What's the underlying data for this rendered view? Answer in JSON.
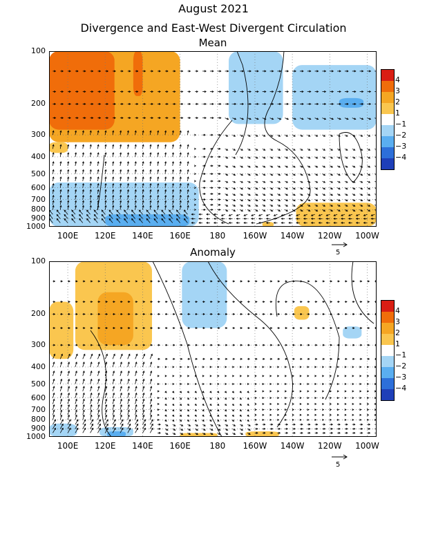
{
  "header": {
    "title": "August 2021",
    "subtitle": "Divergence and East-West Divergent Circulation"
  },
  "panels": [
    {
      "id": "mean",
      "title": "Mean"
    },
    {
      "id": "anomaly",
      "title": "Anomaly"
    }
  ],
  "y_ticks": [
    "100",
    "200",
    "300",
    "400",
    "500",
    "600",
    "700",
    "800",
    "900",
    "1000"
  ],
  "x_ticks": [
    "100E",
    "120E",
    "140E",
    "160E",
    "180",
    "160W",
    "140W",
    "120W",
    "100W"
  ],
  "reference_vector_label": "5",
  "colorbar": {
    "labels": [
      "4",
      "3",
      "2",
      "1",
      "−1",
      "−2",
      "−3",
      "−4"
    ],
    "colors": [
      "#d91e13",
      "#f06d0a",
      "#f5a623",
      "#fac64f",
      "#ffffff",
      "#a4d5f5",
      "#5aaef0",
      "#2d6fd9",
      "#1e3fb8",
      "#8a6fd6"
    ]
  },
  "chart_data": [
    {
      "type": "heatmap",
      "title": "Mean",
      "x_axis": "longitude",
      "y_axis": "pressure (hPa)",
      "xlim": [
        90,
        265
      ],
      "ylim": [
        1000,
        100
      ],
      "y_ticks": [
        100,
        200,
        300,
        400,
        500,
        600,
        700,
        800,
        900,
        1000
      ],
      "x_ticks": [
        100,
        120,
        140,
        160,
        180,
        200,
        220,
        240,
        260
      ],
      "levels": [
        -4,
        -3,
        -2,
        -1,
        1,
        2,
        3,
        4
      ],
      "regions": [
        {
          "lon": [
            90,
            160
          ],
          "p": [
            100,
            330
          ],
          "value": 2
        },
        {
          "lon": [
            90,
            125
          ],
          "p": [
            100,
            280
          ],
          "value": 3
        },
        {
          "lon": [
            125,
            145
          ],
          "p": [
            100,
            230
          ],
          "value": 2.5
        },
        {
          "lon": [
            135,
            140
          ],
          "p": [
            100,
            180
          ],
          "value": 3.5
        },
        {
          "lon": [
            90,
            100
          ],
          "p": [
            330,
            380
          ],
          "value": 1.5
        },
        {
          "lon": [
            186,
            215
          ],
          "p": [
            100,
            260
          ],
          "value": -1.5
        },
        {
          "lon": [
            220,
            265
          ],
          "p": [
            120,
            280
          ],
          "value": -1.5
        },
        {
          "lon": [
            245,
            258
          ],
          "p": [
            185,
            210
          ],
          "value": -2.5
        },
        {
          "lon": [
            90,
            170
          ],
          "p": [
            560,
            1000
          ],
          "value": -1.5
        },
        {
          "lon": [
            120,
            165
          ],
          "p": [
            850,
            1000
          ],
          "value": -2.5
        },
        {
          "lon": [
            222,
            265
          ],
          "p": [
            730,
            1000
          ],
          "value": 1.5
        },
        {
          "lon": [
            204,
            210
          ],
          "p": [
            940,
            1000
          ],
          "value": 1.5
        }
      ],
      "wind_note": "upward arrows 100E-160E at 300-1000 hPa, descending 160W-100W"
    },
    {
      "type": "heatmap",
      "title": "Anomaly",
      "x_axis": "longitude",
      "y_axis": "pressure (hPa)",
      "xlim": [
        90,
        265
      ],
      "ylim": [
        1000,
        100
      ],
      "y_ticks": [
        100,
        200,
        300,
        400,
        500,
        600,
        700,
        800,
        900,
        1000
      ],
      "x_ticks": [
        100,
        120,
        140,
        160,
        180,
        200,
        220,
        240,
        260
      ],
      "levels": [
        -4,
        -3,
        -2,
        -1,
        1,
        2,
        3,
        4
      ],
      "regions": [
        {
          "lon": [
            90,
            103
          ],
          "p": [
            170,
            360
          ],
          "value": 1.5
        },
        {
          "lon": [
            104,
            145
          ],
          "p": [
            100,
            320
          ],
          "value": 1.5
        },
        {
          "lon": [
            116,
            135
          ],
          "p": [
            150,
            300
          ],
          "value": 2.2
        },
        {
          "lon": [
            161,
            185
          ],
          "p": [
            100,
            240
          ],
          "value": -1.5
        },
        {
          "lon": [
            221,
            229
          ],
          "p": [
            180,
            215
          ],
          "value": 1.5
        },
        {
          "lon": [
            247,
            257
          ],
          "p": [
            235,
            275
          ],
          "value": -1.5
        },
        {
          "lon": [
            90,
            105
          ],
          "p": [
            840,
            1000
          ],
          "value": -1.5
        },
        {
          "lon": [
            117,
            135
          ],
          "p": [
            880,
            1000
          ],
          "value": -1.5
        },
        {
          "lon": [
            121,
            131
          ],
          "p": [
            930,
            1000
          ],
          "value": -2.8
        },
        {
          "lon": [
            160,
            180
          ],
          "p": [
            950,
            1000
          ],
          "value": 1.5
        },
        {
          "lon": [
            195,
            213
          ],
          "p": [
            930,
            1000
          ],
          "value": 1.5
        }
      ],
      "wind_note": "upward arrows 100E-140E at 400-1000 hPa"
    }
  ]
}
